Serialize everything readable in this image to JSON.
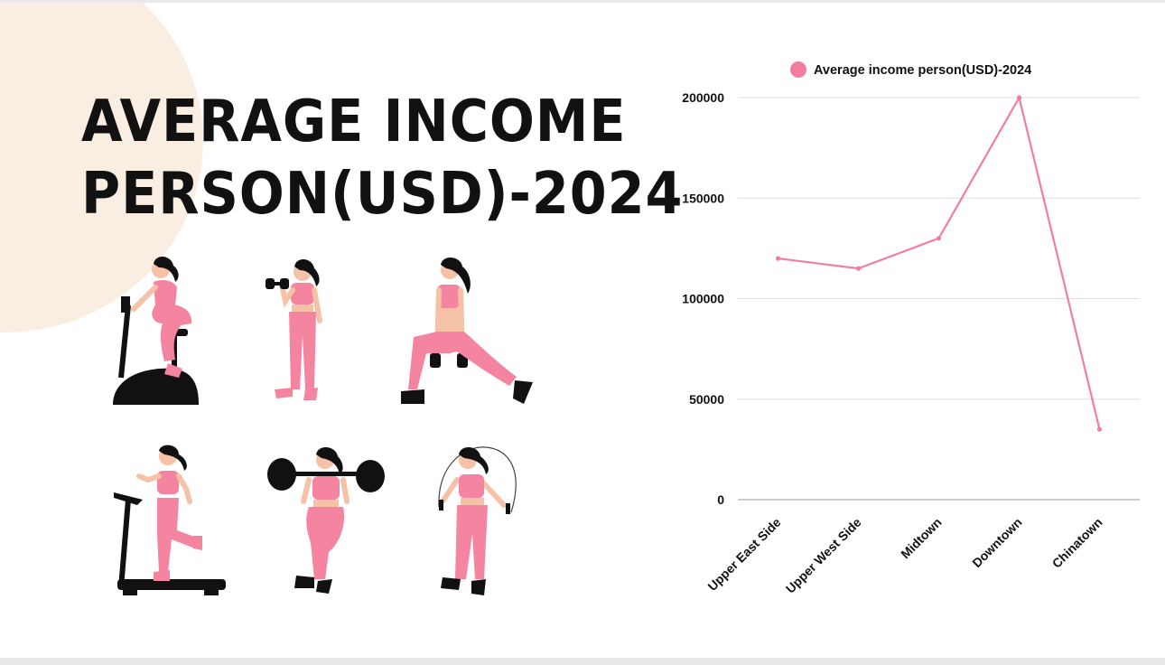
{
  "slide": {
    "title_line1": "AVERAGE INCOME",
    "title_line2": "PERSON(USD)-2024"
  },
  "illustrations": [
    {
      "name": "stationary-bike"
    },
    {
      "name": "dumbbell-curl"
    },
    {
      "name": "dumbbell-lunge"
    },
    {
      "name": "treadmill"
    },
    {
      "name": "barbell-squat"
    },
    {
      "name": "jump-rope"
    }
  ],
  "colors": {
    "series": "#f17e9f",
    "figure_pink": "#f4849f",
    "skin": "#f5c2a8",
    "dark": "#111111",
    "background_blob": "#faeee3",
    "gridline": "#dddddd",
    "axis": "#999999"
  },
  "chart_data": {
    "type": "line",
    "title": "",
    "xlabel": "",
    "ylabel": "",
    "categories": [
      "Upper East Side",
      "Upper West Side",
      "Midtown",
      "Downtown",
      "Chinatown"
    ],
    "series": [
      {
        "name": "Average income person(USD)-2024",
        "values": [
          120000,
          115000,
          130000,
          200000,
          35000
        ]
      }
    ],
    "ylim": [
      0,
      200000
    ],
    "yticks": [
      "0",
      "50000",
      "100000",
      "150000",
      "200000"
    ],
    "grid": true,
    "legend": "top"
  }
}
